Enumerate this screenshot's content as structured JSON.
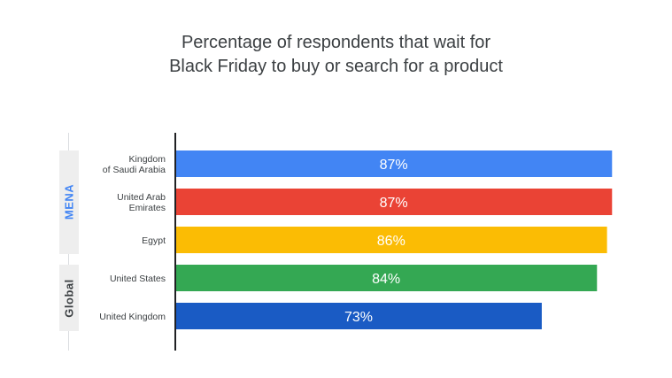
{
  "chart_data": {
    "type": "bar",
    "orientation": "horizontal",
    "title_lines": [
      "Percentage of respondents that wait for",
      "Black Friday to buy or search for a product"
    ],
    "groups": [
      {
        "name": "MENA",
        "color": "#4285f4"
      },
      {
        "name": "Global",
        "color": "#3c4043"
      }
    ],
    "categories": [
      {
        "lines": [
          "Kingdom",
          "of Saudi Arabia"
        ],
        "group": "MENA"
      },
      {
        "lines": [
          "United Arab",
          "Emirates"
        ],
        "group": "MENA"
      },
      {
        "lines": [
          "Egypt"
        ],
        "group": "MENA"
      },
      {
        "lines": [
          "United States"
        ],
        "group": "Global"
      },
      {
        "lines": [
          "United Kingdom"
        ],
        "group": "Global"
      }
    ],
    "values": [
      87,
      87,
      86,
      84,
      73
    ],
    "labels": [
      "87%",
      "87%",
      "86%",
      "84%",
      "73%"
    ],
    "colors": [
      "#4285f4",
      "#ea4335",
      "#fbbc04",
      "#34a853",
      "#1a5bc4"
    ],
    "unit": "%",
    "xlim": [
      0,
      100
    ],
    "grid": false
  }
}
